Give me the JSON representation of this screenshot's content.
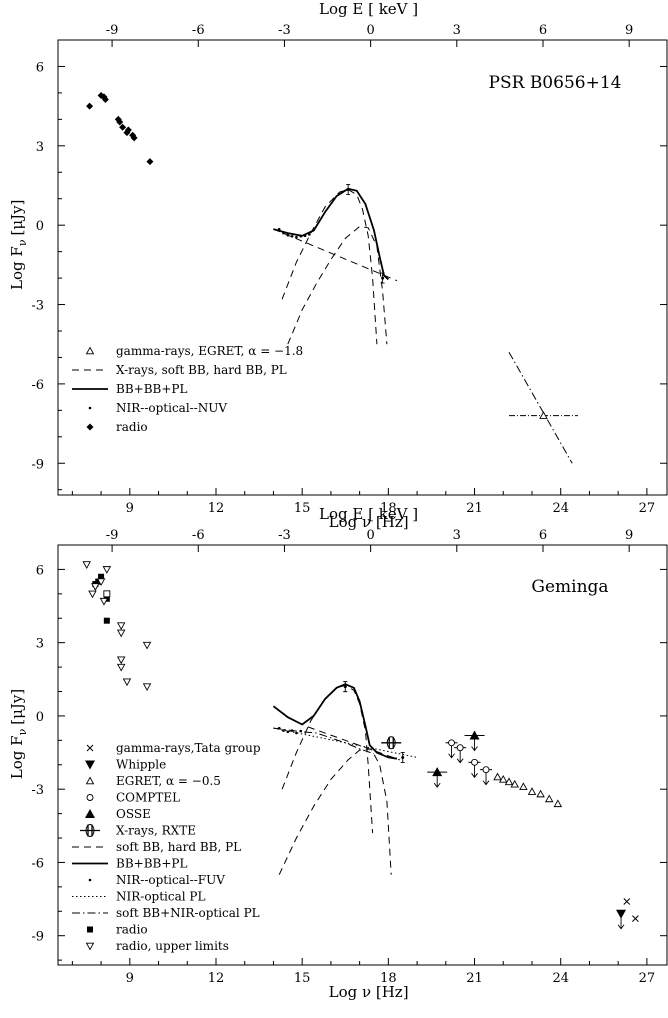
{
  "chart_data": [
    {
      "type": "scatter",
      "name_label": "PSR B0656+14",
      "xlabel": "Log ν [Hz]",
      "x2label": "Log E [ keV ]",
      "ylabel": "Log F",
      "ylabel_sub": "ν",
      "ylabel_unit": "[μJy]",
      "xlim": [
        6.5,
        27.7
      ],
      "ylim": [
        -10.2,
        7.0
      ],
      "xticks": [
        9,
        12,
        15,
        18,
        21,
        24,
        27
      ],
      "xtick_labels": [
        "9",
        "12",
        "15",
        "18",
        "21",
        "24",
        "27"
      ],
      "yticks": [
        6,
        3,
        0,
        -3,
        -6,
        -9
      ],
      "ytick_labels": [
        "6",
        "3",
        "0",
        "-3",
        "-6",
        "-9"
      ],
      "x2ticks": [
        -9,
        -6,
        -3,
        0,
        3,
        6,
        9
      ],
      "x2tick_labels": [
        "-9",
        "-6",
        "-3",
        "0",
        "3",
        "6",
        "9"
      ],
      "x2_offset": 17.383,
      "legend": [
        {
          "label": "gamma-rays, EGRET, α = −1.8",
          "marker": "triangle-open"
        },
        {
          "label": "X-rays, soft BB, hard BB, PL",
          "marker": "dashed"
        },
        {
          "label": "BB+BB+PL",
          "marker": "solid"
        },
        {
          "label": "NIR--optical--NUV",
          "marker": "dot"
        },
        {
          "label": "radio",
          "marker": "diamond"
        }
      ],
      "series": [
        {
          "marker": "diamond",
          "points": [
            [
              7.6,
              4.5
            ],
            [
              8.0,
              4.9
            ],
            [
              8.1,
              4.85
            ],
            [
              8.15,
              4.75
            ],
            [
              8.6,
              4.0
            ],
            [
              8.65,
              3.9
            ],
            [
              8.75,
              3.7
            ],
            [
              8.9,
              3.5
            ],
            [
              8.95,
              3.6
            ],
            [
              9.1,
              3.4
            ],
            [
              9.15,
              3.3
            ],
            [
              9.7,
              2.4
            ]
          ]
        },
        {
          "marker": "dot",
          "points": [
            [
              14.2,
              -0.15
            ],
            [
              14.35,
              -0.3
            ],
            [
              14.5,
              -0.38
            ],
            [
              14.65,
              -0.42
            ],
            [
              14.8,
              -0.45
            ],
            [
              14.95,
              -0.42
            ],
            [
              15.1,
              -0.4
            ],
            [
              15.25,
              -0.35
            ]
          ]
        },
        {
          "marker": "triangle-open",
          "points": [
            [
              23.4,
              -7.2
            ]
          ],
          "xerr": 1.2
        },
        {
          "marker": "errbar",
          "points": [
            [
              16.6,
              1.35
            ],
            [
              17.8,
              -2.0
            ]
          ]
        }
      ],
      "curves": [
        {
          "style": "dashed",
          "name": "soft BB",
          "points": [
            [
              14.3,
              -2.8
            ],
            [
              14.8,
              -1.4
            ],
            [
              15.3,
              -0.3
            ],
            [
              15.8,
              0.7
            ],
            [
              16.3,
              1.25
            ],
            [
              16.6,
              1.35
            ],
            [
              16.9,
              1.15
            ],
            [
              17.1,
              0.6
            ],
            [
              17.3,
              -0.4
            ],
            [
              17.45,
              -2.0
            ],
            [
              17.6,
              -4.5
            ]
          ]
        },
        {
          "style": "dashed",
          "name": "hard BB",
          "points": [
            [
              14.5,
              -4.5
            ],
            [
              15.0,
              -3.2
            ],
            [
              15.5,
              -2.2
            ],
            [
              16.0,
              -1.3
            ],
            [
              16.5,
              -0.5
            ],
            [
              17.0,
              -0.05
            ],
            [
              17.3,
              -0.1
            ],
            [
              17.6,
              -0.8
            ],
            [
              17.8,
              -2.5
            ],
            [
              17.95,
              -4.5
            ]
          ]
        },
        {
          "style": "dashed",
          "name": "PL",
          "points": [
            [
              14.0,
              -0.15
            ],
            [
              18.3,
              -2.1
            ]
          ]
        },
        {
          "style": "solid",
          "name": "BB+BB+PL",
          "points": [
            [
              14.0,
              -0.15
            ],
            [
              14.5,
              -0.3
            ],
            [
              15.0,
              -0.4
            ],
            [
              15.4,
              -0.2
            ],
            [
              15.8,
              0.5
            ],
            [
              16.2,
              1.1
            ],
            [
              16.6,
              1.38
            ],
            [
              16.9,
              1.3
            ],
            [
              17.2,
              0.8
            ],
            [
              17.5,
              -0.2
            ],
            [
              17.7,
              -1.2
            ],
            [
              17.85,
              -1.9
            ],
            [
              18.0,
              -2.05
            ]
          ]
        },
        {
          "style": "dashdot",
          "name": "gamma PL",
          "points": [
            [
              22.2,
              -4.8
            ],
            [
              24.4,
              -9.0
            ]
          ]
        }
      ]
    },
    {
      "type": "scatter",
      "name_label": "Geminga",
      "xlabel": "Log ν [Hz]",
      "x2label": "Log E [ keV ]",
      "ylabel": "Log F",
      "ylabel_sub": "ν",
      "ylabel_unit": "[μJy]",
      "xlim": [
        6.5,
        27.7
      ],
      "ylim": [
        -10.2,
        7.0
      ],
      "xticks": [
        9,
        12,
        15,
        18,
        21,
        24,
        27
      ],
      "xtick_labels": [
        "9",
        "12",
        "15",
        "18",
        "21",
        "24",
        "27"
      ],
      "yticks": [
        6,
        3,
        0,
        -3,
        -6,
        -9
      ],
      "ytick_labels": [
        "6",
        "3",
        "0",
        "-3",
        "-6",
        "-9"
      ],
      "x2ticks": [
        -9,
        -6,
        -3,
        0,
        3,
        6,
        9
      ],
      "x2tick_labels": [
        "-9",
        "-6",
        "-3",
        "0",
        "3",
        "6",
        "9"
      ],
      "x2_offset": 17.383,
      "legend": [
        {
          "label": "gamma-rays,Tata group",
          "marker": "cross"
        },
        {
          "label": "Whipple",
          "marker": "triangle-down-filled"
        },
        {
          "label": "EGRET, α = −0.5",
          "marker": "triangle-open"
        },
        {
          "label": "COMPTEL",
          "marker": "circle-open"
        },
        {
          "label": "OSSE",
          "marker": "triangle-filled"
        },
        {
          "label": "X-rays, RXTE",
          "marker": "rxte"
        },
        {
          "label": "soft BB, hard BB, PL",
          "marker": "dashed"
        },
        {
          "label": "BB+BB+PL",
          "marker": "solid"
        },
        {
          "label": "NIR--optical--FUV",
          "marker": "dot"
        },
        {
          "label": "NIR-optical PL",
          "marker": "dotted"
        },
        {
          "label": "soft BB+NIR-optical PL",
          "marker": "dashdot"
        },
        {
          "label": "radio",
          "marker": "square-filled"
        },
        {
          "label": "radio, upper limits",
          "marker": "triangle-down-open"
        }
      ],
      "series": [
        {
          "marker": "square-filled",
          "points": [
            [
              7.8,
              5.4
            ],
            [
              7.9,
              5.5
            ],
            [
              8.0,
              5.7
            ],
            [
              8.2,
              4.8
            ],
            [
              8.2,
              3.9
            ]
          ]
        },
        {
          "marker": "square-open",
          "points": [
            [
              8.2,
              5.0
            ]
          ]
        },
        {
          "marker": "triangle-down-open",
          "points": [
            [
              7.5,
              6.2
            ],
            [
              7.7,
              5.0
            ],
            [
              7.8,
              5.3
            ],
            [
              8.0,
              5.5
            ],
            [
              8.1,
              4.7
            ],
            [
              8.2,
              6.0
            ],
            [
              8.7,
              3.7
            ],
            [
              8.7,
              3.4
            ],
            [
              8.7,
              2.3
            ],
            [
              8.7,
              2.0
            ],
            [
              8.9,
              1.4
            ],
            [
              9.6,
              2.9
            ],
            [
              9.6,
              1.2
            ]
          ]
        },
        {
          "marker": "dot",
          "points": [
            [
              14.2,
              -0.5
            ],
            [
              14.35,
              -0.6
            ],
            [
              14.5,
              -0.65
            ],
            [
              14.65,
              -0.6
            ],
            [
              14.8,
              -0.7
            ],
            [
              14.95,
              -0.62
            ]
          ]
        },
        {
          "marker": "rxte",
          "points": [
            [
              18.1,
              -1.1
            ]
          ]
        },
        {
          "marker": "errbar",
          "points": [
            [
              16.5,
              1.2
            ],
            [
              18.5,
              -1.7
            ]
          ]
        },
        {
          "marker": "triangle-filled-ul",
          "points": [
            [
              19.7,
              -2.3
            ],
            [
              21.0,
              -0.8
            ]
          ]
        },
        {
          "marker": "circle-open-ul",
          "points": [
            [
              20.2,
              -1.1
            ],
            [
              20.5,
              -1.3
            ],
            [
              21.0,
              -1.9
            ],
            [
              21.4,
              -2.2
            ]
          ]
        },
        {
          "marker": "triangle-open",
          "points": [
            [
              21.8,
              -2.5
            ],
            [
              22.0,
              -2.6
            ],
            [
              22.2,
              -2.7
            ],
            [
              22.4,
              -2.8
            ],
            [
              22.7,
              -2.9
            ],
            [
              23.0,
              -3.1
            ],
            [
              23.3,
              -3.2
            ],
            [
              23.6,
              -3.4
            ],
            [
              23.9,
              -3.6
            ]
          ]
        },
        {
          "marker": "triangle-down-filled-ul",
          "points": [
            [
              26.1,
              -8.1
            ]
          ]
        },
        {
          "marker": "cross",
          "points": [
            [
              26.3,
              -7.6
            ],
            [
              26.6,
              -8.3
            ]
          ]
        }
      ],
      "curves": [
        {
          "style": "dashed",
          "name": "soft BB",
          "points": [
            [
              14.3,
              -3.0
            ],
            [
              14.8,
              -1.5
            ],
            [
              15.3,
              -0.2
            ],
            [
              15.8,
              0.7
            ],
            [
              16.2,
              1.15
            ],
            [
              16.5,
              1.25
            ],
            [
              16.8,
              1.05
            ],
            [
              17.0,
              0.5
            ],
            [
              17.2,
              -0.6
            ],
            [
              17.3,
              -2.0
            ],
            [
              17.45,
              -4.8
            ]
          ]
        },
        {
          "style": "dashed",
          "name": "hard BB",
          "points": [
            [
              14.2,
              -6.5
            ],
            [
              14.8,
              -5.0
            ],
            [
              15.4,
              -3.7
            ],
            [
              16.0,
              -2.6
            ],
            [
              16.6,
              -1.8
            ],
            [
              17.0,
              -1.4
            ],
            [
              17.4,
              -1.35
            ],
            [
              17.7,
              -2.0
            ],
            [
              17.95,
              -3.5
            ],
            [
              18.1,
              -6.5
            ]
          ]
        },
        {
          "style": "dashed",
          "name": "PL",
          "points": [
            [
              15.2,
              -0.45
            ],
            [
              18.4,
              -1.8
            ]
          ]
        },
        {
          "style": "solid",
          "name": "BB+BB+PL",
          "points": [
            [
              14.0,
              0.4
            ],
            [
              14.5,
              -0.05
            ],
            [
              15.0,
              -0.35
            ],
            [
              15.4,
              0.0
            ],
            [
              15.8,
              0.7
            ],
            [
              16.2,
              1.15
            ],
            [
              16.5,
              1.3
            ],
            [
              16.8,
              1.15
            ],
            [
              17.0,
              0.6
            ],
            [
              17.2,
              -0.4
            ],
            [
              17.35,
              -1.2
            ],
            [
              17.6,
              -1.5
            ],
            [
              18.0,
              -1.7
            ],
            [
              18.3,
              -1.75
            ]
          ]
        },
        {
          "style": "dotted",
          "name": "NIR-optical PL",
          "points": [
            [
              14.0,
              -0.5
            ],
            [
              19.0,
              -1.7
            ]
          ]
        },
        {
          "style": "dashdot",
          "name": "soft BB+NIR-optical PL",
          "points": [
            [
              14.0,
              -0.5
            ],
            [
              15.0,
              -0.65
            ],
            [
              15.5,
              -0.7
            ],
            [
              16.0,
              -0.9
            ],
            [
              16.5,
              -1.1
            ],
            [
              17.0,
              -1.35
            ],
            [
              17.5,
              -1.55
            ]
          ]
        }
      ]
    }
  ]
}
